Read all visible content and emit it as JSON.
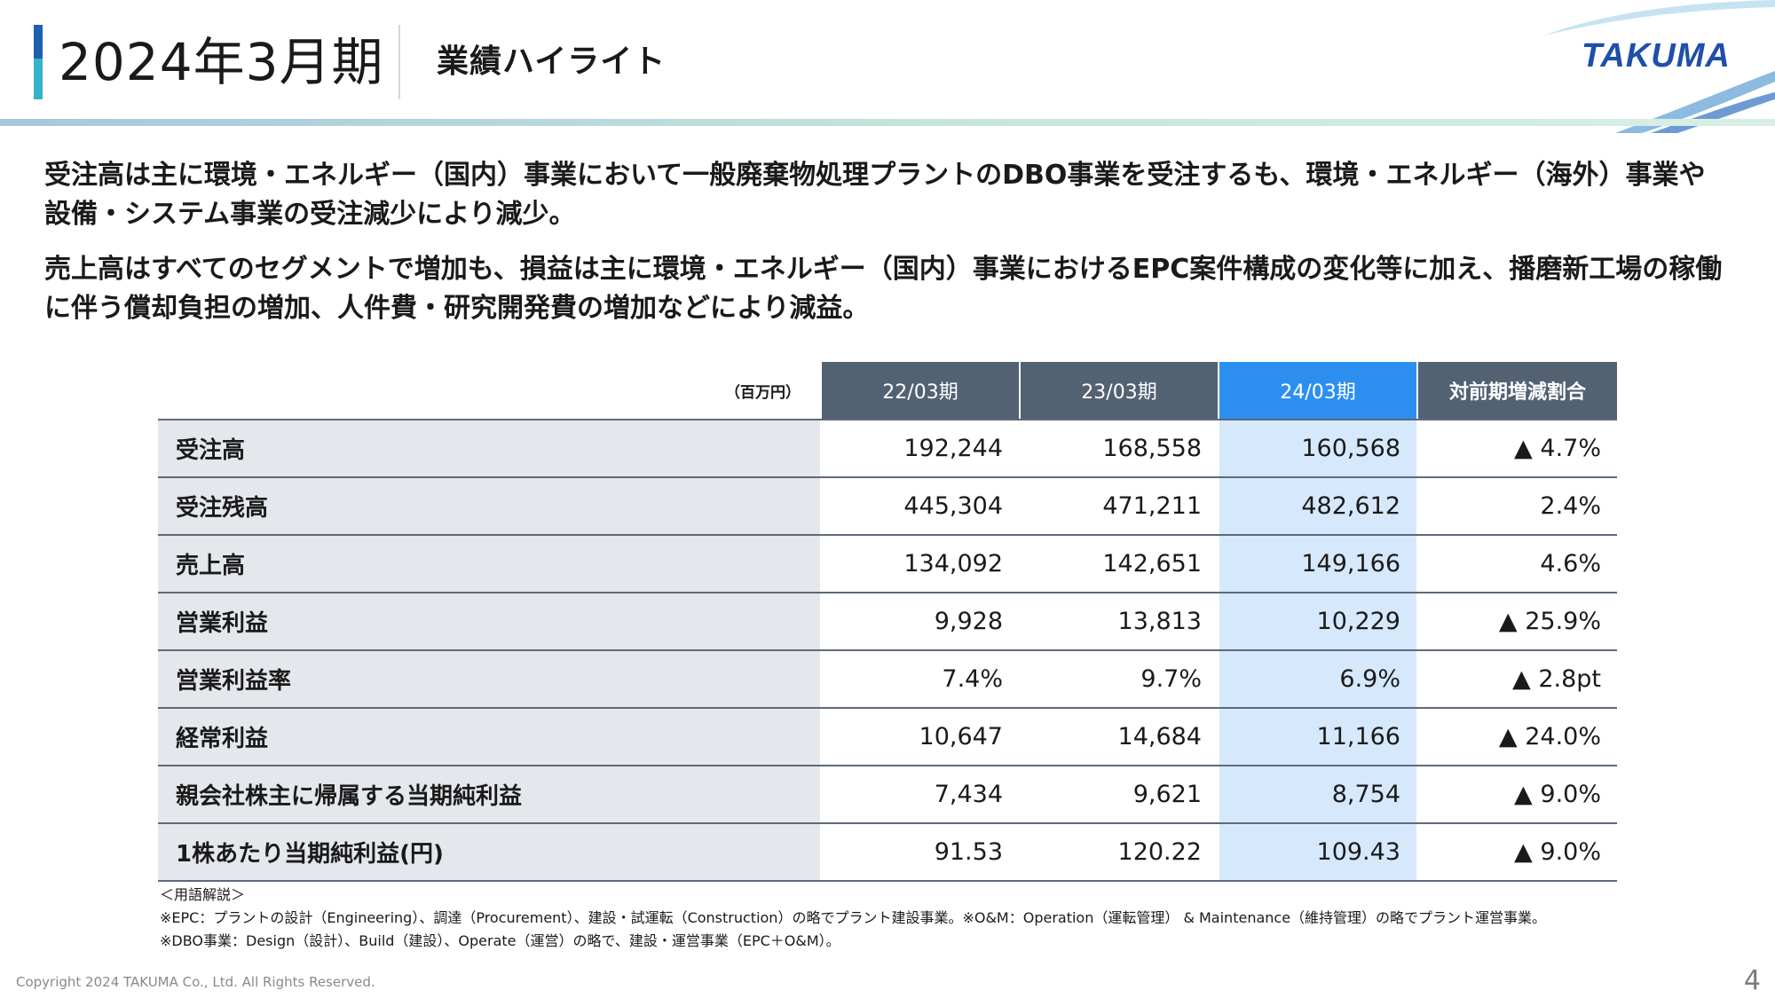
{
  "header": {
    "period": "2024年3月期",
    "section": "業績ハイライト",
    "logo": "TAKUMA"
  },
  "summary": [
    "受注高は主に環境・エネルギー（国内）事業において一般廃棄物処理プラントのDBO事業を受注するも、環境・エネルギー（海外）事業や設備・システム事業の受注減少により減少。",
    "売上高はすべてのセグメントで増加も、損益は主に環境・エネルギー（国内）事業におけるEPC案件構成の変化等に加え、播磨新工場の稼働に伴う償却負担の増加、人件費・研究開発費の増加などにより減益。"
  ],
  "table": {
    "unit": "（百万円）",
    "columns": [
      "22/03期",
      "23/03期",
      "24/03期",
      "対前期増減割合"
    ],
    "rows": [
      {
        "label": "受注高",
        "values": [
          "192,244",
          "168,558",
          "160,568",
          "▲ 4.7%"
        ]
      },
      {
        "label": "受注残高",
        "values": [
          "445,304",
          "471,211",
          "482,612",
          "2.4%"
        ]
      },
      {
        "label": "売上高",
        "values": [
          "134,092",
          "142,651",
          "149,166",
          "4.6%"
        ]
      },
      {
        "label": "営業利益",
        "values": [
          "9,928",
          "13,813",
          "10,229",
          "▲ 25.9%"
        ]
      },
      {
        "label": "営業利益率",
        "values": [
          "7.4%",
          "9.7%",
          "6.9%",
          "▲ 2.8pt"
        ]
      },
      {
        "label": "経常利益",
        "values": [
          "10,647",
          "14,684",
          "11,166",
          "▲ 24.0%"
        ]
      },
      {
        "label": "親会社株主に帰属する当期純利益",
        "values": [
          "7,434",
          "9,621",
          "8,754",
          "▲ 9.0%"
        ]
      },
      {
        "label": "1株あたり当期純利益(円)",
        "values": [
          "91.53",
          "120.22",
          "109.43",
          "▲ 9.0%"
        ]
      }
    ]
  },
  "notes": {
    "heading": "＜用語解説＞",
    "line1": "※EPC：プラントの設計（Engineering）、調達（Procurement）、建設・試運転（Construction）の略でプラント建設事業。※O&M：Operation（運転管理） & Maintenance（維持管理）の略でプラント運営事業。",
    "line2": "※DBO事業：Design（設計）、Build（建設）、Operate（運営）の略で、建設・運営事業（EPC＋O&M）。"
  },
  "footer": {
    "copyright": "Copyright  2024 TAKUMA Co., Ltd.  All Rights Reserved.",
    "page": "4"
  },
  "colors": {
    "header_cell": "#536273",
    "current_header": "#2c8ff0",
    "current_cell": "#d6e8fc",
    "label_cell": "#e4e7eb",
    "logo": "#1f4fa8"
  }
}
